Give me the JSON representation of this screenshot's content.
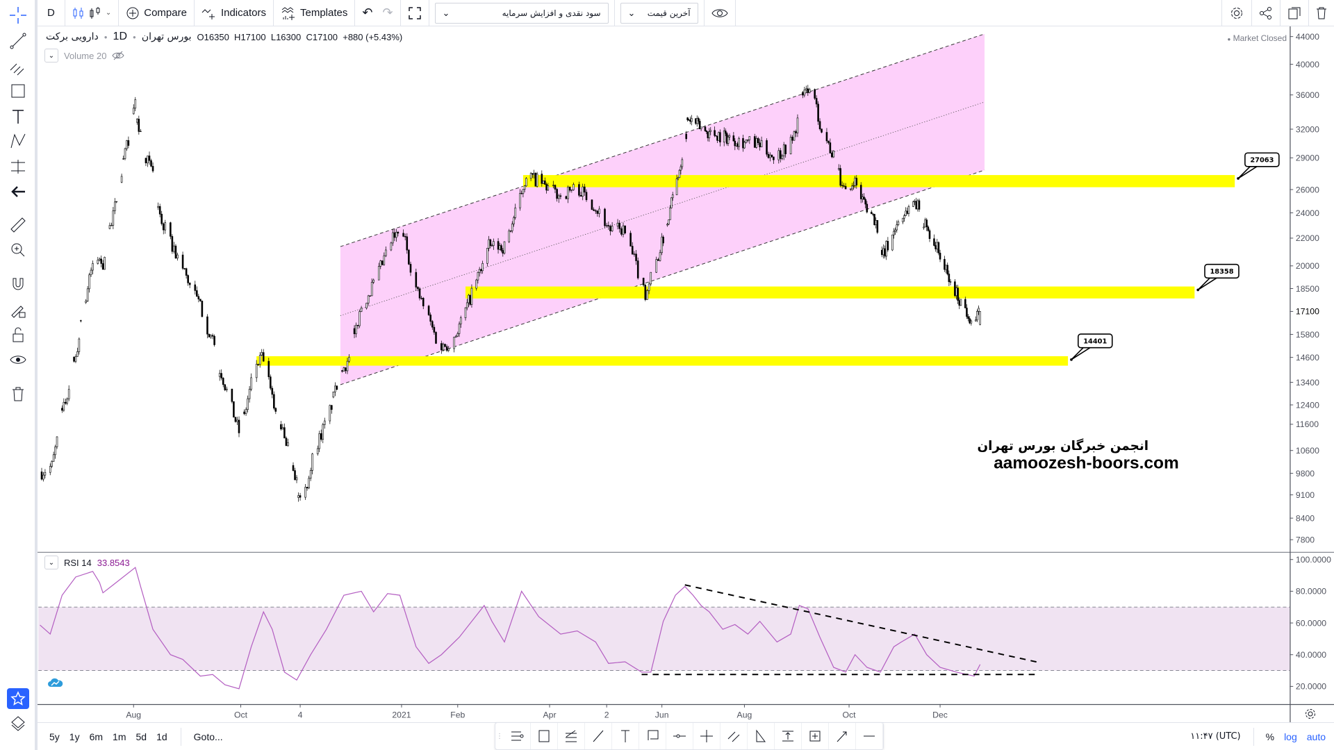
{
  "toolbar": {
    "interval": "D",
    "compare": "Compare",
    "indicators": "Indicators",
    "templates": "Templates",
    "adjust_select": "سود نقدی و افزایش سرمایه",
    "price_select": "آخرین قیمت"
  },
  "legend": {
    "symbol": "دارویی برکت",
    "interval": "1D",
    "exchange": "بورس تهران",
    "open_label": "O",
    "open": "16350",
    "high_label": "H",
    "high": "17100",
    "low_label": "L",
    "low": "16300",
    "close_label": "C",
    "close": "17100",
    "change": "+880 (+5.43%)",
    "volume": "Volume 20",
    "market_status": "Market Closed"
  },
  "rsi_legend": {
    "name": "RSI 14",
    "value": "33.8543"
  },
  "watermark": {
    "line1": "انجمن خبرگان بورس تهران",
    "line2": "aamoozesh-boors.com"
  },
  "bottombar": {
    "ranges": [
      "5y",
      "1y",
      "6m",
      "1m",
      "5d",
      "1d"
    ],
    "goto": "Goto...",
    "clock": "۱۱:۴۷ (UTC)",
    "percent": "%",
    "log": "log",
    "auto": "auto"
  },
  "colors": {
    "accent": "#2962ff",
    "zone": "#ffff00",
    "channel": "#fdd0fa",
    "rsi_line": "#b45fc2",
    "rsi_band": "#f0e3f2",
    "rsi_value": "#8b1a93"
  },
  "chart_data": [
    {
      "type": "candlestick",
      "yscale": "log",
      "grid": false,
      "y_ticks": [
        44000,
        40000,
        36000,
        32000,
        29000,
        26000,
        24000,
        22000,
        20000,
        18500,
        17100,
        15800,
        14600,
        13400,
        12400,
        11600,
        10600,
        9800,
        9100,
        8400,
        7800
      ],
      "current_price": 17100,
      "x_ticks": [
        {
          "label": "Aug",
          "date": "2020-08-01"
        },
        {
          "label": "Oct",
          "date": "2020-10-01"
        },
        {
          "label": "4",
          "date": "2020-11-04"
        },
        {
          "label": "2021",
          "date": "2021-01-01"
        },
        {
          "label": "Feb",
          "date": "2021-02-01"
        },
        {
          "label": "Apr",
          "date": "2021-04-01"
        },
        {
          "label": "2",
          "date": "2021-05-02"
        },
        {
          "label": "Jun",
          "date": "2021-06-01"
        },
        {
          "label": "Aug",
          "date": "2021-08-01"
        },
        {
          "label": "Oct",
          "date": "2021-10-01"
        },
        {
          "label": "Dec",
          "date": "2021-12-01"
        }
      ],
      "close_path": [
        [
          "2020-06-08",
          9850
        ],
        [
          "2020-06-14",
          10050
        ],
        [
          "2020-06-21",
          12260
        ],
        [
          "2020-06-28",
          14600
        ],
        [
          "2020-07-03",
          17400
        ],
        [
          "2020-07-09",
          20760
        ],
        [
          "2020-07-14",
          20150
        ],
        [
          "2020-07-20",
          23670
        ],
        [
          "2020-07-25",
          27800
        ],
        [
          "2020-08-02",
          34620
        ],
        [
          "2020-08-07",
          29480
        ],
        [
          "2020-08-12",
          27400
        ],
        [
          "2020-08-17",
          23310
        ],
        [
          "2020-08-22",
          21680
        ],
        [
          "2020-08-30",
          19570
        ],
        [
          "2020-09-09",
          17150
        ],
        [
          "2020-09-16",
          15040
        ],
        [
          "2020-09-23",
          13000
        ],
        [
          "2020-10-01",
          11070
        ],
        [
          "2020-10-04",
          12260
        ],
        [
          "2020-10-09",
          14190
        ],
        [
          "2020-10-14",
          14600
        ],
        [
          "2020-10-19",
          12620
        ],
        [
          "2020-10-29",
          10600
        ],
        [
          "2020-11-05",
          8760
        ],
        [
          "2020-11-12",
          10600
        ],
        [
          "2020-11-20",
          11910
        ],
        [
          "2020-11-27",
          13780
        ],
        [
          "2020-12-02",
          14600
        ],
        [
          "2020-12-09",
          17400
        ],
        [
          "2020-12-17",
          19010
        ],
        [
          "2020-12-27",
          22000
        ],
        [
          "2021-01-02",
          22330
        ],
        [
          "2021-01-09",
          18470
        ],
        [
          "2021-01-17",
          16430
        ],
        [
          "2021-01-22",
          15040
        ],
        [
          "2021-01-29",
          15490
        ],
        [
          "2021-02-05",
          16910
        ],
        [
          "2021-02-13",
          19010
        ],
        [
          "2021-02-21",
          21370
        ],
        [
          "2021-03-03",
          21370
        ],
        [
          "2021-03-12",
          24730
        ],
        [
          "2021-03-17",
          27400
        ],
        [
          "2021-03-26",
          26610
        ],
        [
          "2021-04-07",
          25460
        ],
        [
          "2021-04-16",
          26220
        ],
        [
          "2021-04-25",
          24730
        ],
        [
          "2021-05-04",
          22650
        ],
        [
          "2021-05-11",
          22650
        ],
        [
          "2021-05-16",
          20760
        ],
        [
          "2021-05-23",
          18190
        ],
        [
          "2021-05-30",
          20760
        ],
        [
          "2021-06-08",
          24730
        ],
        [
          "2021-06-15",
          28620
        ],
        [
          "2021-06-21",
          33120
        ],
        [
          "2021-07-04",
          31720
        ],
        [
          "2021-07-16",
          31250
        ],
        [
          "2021-07-29",
          30790
        ],
        [
          "2021-08-09",
          30360
        ],
        [
          "2021-08-19",
          29050
        ],
        [
          "2021-08-29",
          30790
        ],
        [
          "2021-09-05",
          36170
        ],
        [
          "2021-09-08",
          37230
        ],
        [
          "2021-09-15",
          32170
        ],
        [
          "2021-09-22",
          29050
        ],
        [
          "2021-09-30",
          25090
        ],
        [
          "2021-10-04",
          27010
        ],
        [
          "2021-10-10",
          25090
        ],
        [
          "2021-10-19",
          23310
        ],
        [
          "2021-10-24",
          20760
        ],
        [
          "2021-11-03",
          23310
        ],
        [
          "2021-11-14",
          25090
        ],
        [
          "2021-11-23",
          22650
        ],
        [
          "2021-12-01",
          20760
        ],
        [
          "2021-12-07",
          19010
        ],
        [
          "2021-12-15",
          17680
        ],
        [
          "2021-12-24",
          16430
        ],
        [
          "2021-12-28",
          17100
        ]
      ],
      "drawings": {
        "channel": {
          "top": [
            [
              "2020-11-27",
              21370
            ],
            [
              "2021-12-31",
              44400
            ]
          ],
          "bottom": [
            [
              "2020-11-27",
              13290
            ],
            [
              "2021-12-31",
              27800
            ]
          ]
        },
        "zones": [
          {
            "label": "27063",
            "from": "2021-03-15",
            "to": "2022-06-17",
            "top": 27330,
            "bottom": 26210
          },
          {
            "label": "18358",
            "from": "2021-02-06",
            "to": "2022-05-21",
            "top": 18630,
            "bottom": 17880
          },
          {
            "label": "14401",
            "from": "2020-10-10",
            "to": "2022-02-25",
            "top": 14660,
            "bottom": 14190
          }
        ]
      }
    },
    {
      "type": "line",
      "name": "RSI 14",
      "ylim": [
        0,
        100
      ],
      "y_ticks": [
        "100.0000",
        "80.0000",
        "60.0000",
        "40.0000",
        "20.0000"
      ],
      "band": [
        30,
        70
      ],
      "points": [
        [
          "2020-06-07",
          58.7
        ],
        [
          "2020-06-13",
          53
        ],
        [
          "2020-06-20",
          77.5
        ],
        [
          "2020-06-28",
          89
        ],
        [
          "2020-07-08",
          92.5
        ],
        [
          "2020-07-12",
          85.5
        ],
        [
          "2020-07-14",
          79
        ],
        [
          "2020-07-20",
          84
        ],
        [
          "2020-08-02",
          95
        ],
        [
          "2020-08-05",
          83
        ],
        [
          "2020-08-12",
          56
        ],
        [
          "2020-08-22",
          40
        ],
        [
          "2020-08-29",
          37
        ],
        [
          "2020-09-08",
          26.5
        ],
        [
          "2020-09-15",
          27.5
        ],
        [
          "2020-09-22",
          21
        ],
        [
          "2020-09-30",
          18.5
        ],
        [
          "2020-10-07",
          45
        ],
        [
          "2020-10-14",
          67
        ],
        [
          "2020-10-19",
          56
        ],
        [
          "2020-10-26",
          29
        ],
        [
          "2020-11-02",
          24
        ],
        [
          "2020-11-10",
          40
        ],
        [
          "2020-11-19",
          56
        ],
        [
          "2020-11-29",
          77.5
        ],
        [
          "2020-12-09",
          80
        ],
        [
          "2020-12-16",
          67
        ],
        [
          "2020-12-24",
          78.5
        ],
        [
          "2020-12-31",
          77.5
        ],
        [
          "2021-01-09",
          45
        ],
        [
          "2021-01-16",
          34.5
        ],
        [
          "2021-01-23",
          40
        ],
        [
          "2021-02-02",
          51
        ],
        [
          "2021-02-10",
          61
        ],
        [
          "2021-02-18",
          71
        ],
        [
          "2021-02-23",
          61
        ],
        [
          "2021-03-03",
          48
        ],
        [
          "2021-03-14",
          80
        ],
        [
          "2021-03-25",
          64
        ],
        [
          "2021-04-07",
          53
        ],
        [
          "2021-04-16",
          55
        ],
        [
          "2021-04-26",
          48
        ],
        [
          "2021-05-03",
          34.5
        ],
        [
          "2021-05-12",
          35.5
        ],
        [
          "2021-05-21",
          29
        ],
        [
          "2021-05-26",
          29
        ],
        [
          "2021-06-02",
          61
        ],
        [
          "2021-06-11",
          77.5
        ],
        [
          "2021-06-18",
          83
        ],
        [
          "2021-06-24",
          77.5
        ],
        [
          "2021-06-30",
          71
        ],
        [
          "2021-07-06",
          67
        ],
        [
          "2021-07-16",
          56
        ],
        [
          "2021-07-25",
          59
        ],
        [
          "2021-08-03",
          53
        ],
        [
          "2021-08-10",
          61
        ],
        [
          "2021-08-20",
          48
        ],
        [
          "2021-08-28",
          53
        ],
        [
          "2021-09-02",
          71
        ],
        [
          "2021-09-07",
          69
        ],
        [
          "2021-09-14",
          51
        ],
        [
          "2021-09-22",
          32
        ],
        [
          "2021-09-29",
          29
        ],
        [
          "2021-10-05",
          40
        ],
        [
          "2021-10-13",
          32
        ],
        [
          "2021-10-22",
          29
        ],
        [
          "2021-10-31",
          45
        ],
        [
          "2021-11-05",
          48
        ],
        [
          "2021-11-14",
          53
        ],
        [
          "2021-11-22",
          40
        ],
        [
          "2021-12-01",
          32
        ],
        [
          "2021-12-12",
          29
        ],
        [
          "2021-12-24",
          26.5
        ],
        [
          "2021-12-28",
          33.85
        ]
      ],
      "drawings": {
        "trendline": [
          [
            "2021-06-18",
            84
          ],
          [
            "2022-01-37",
            35
          ]
        ],
        "support": [
          [
            "2021-05-21",
            27.5
          ],
          [
            "2022-01-35",
            27.5
          ]
        ]
      }
    }
  ]
}
